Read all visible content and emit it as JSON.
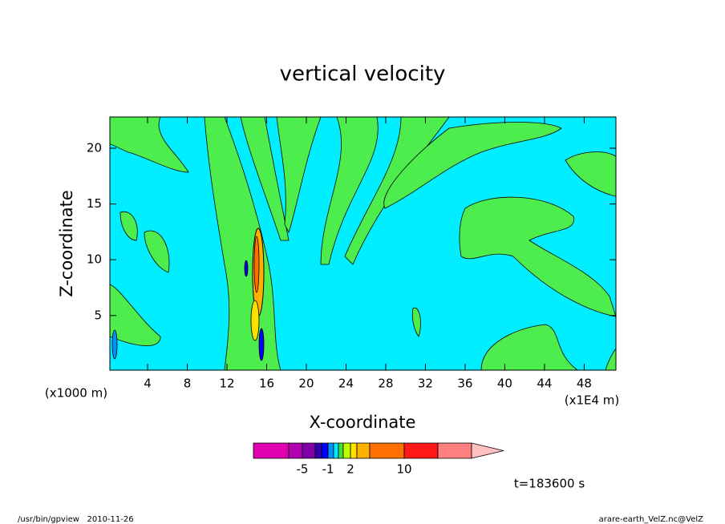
{
  "chart_data": {
    "type": "contour",
    "title": "vertical velocity",
    "x_label": "X-coordinate",
    "y_label": "Z-coordinate",
    "x_unit": "(x1E4 m)",
    "y_unit": "(x1000 m)",
    "xlim": [
      0.2,
      51.2
    ],
    "xticks": [
      4,
      8,
      12,
      16,
      20,
      24,
      28,
      32,
      36,
      40,
      44,
      48
    ],
    "ylim": [
      0.1,
      22.8
    ],
    "yticks": [
      5,
      10,
      15,
      20
    ],
    "colorbar": {
      "colors": [
        "#e000b0",
        "#b000b0",
        "#8000a8",
        "#3000b0",
        "#0000ff",
        "#0090ff",
        "#00e8ff",
        "#40e040",
        "#c0ff00",
        "#ffe000",
        "#ffb000",
        "#ff7000",
        "#ff1818",
        "#ff8080",
        "#ffc0c0"
      ],
      "ticks": [
        -5,
        -1,
        2,
        10
      ]
    },
    "time_label": "t=183600 s",
    "footer_left": "/usr/bin/gpview   2010-11-26",
    "footer_right": "arare-earth_VelZ.nc@VelZ"
  }
}
